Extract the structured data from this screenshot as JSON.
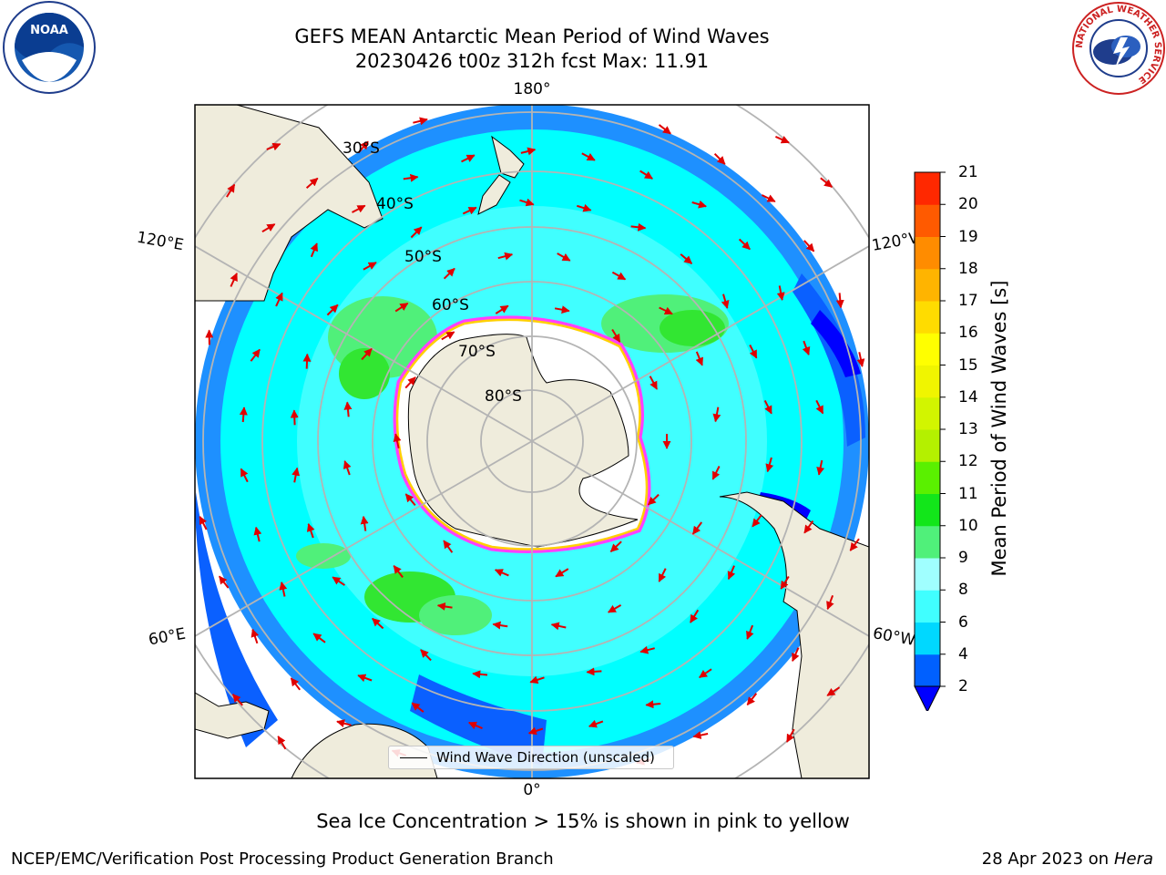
{
  "title_line1": "GEFS MEAN Antarctic Mean Period of Wind Waves",
  "title_line2": "20230426 t00z 312h fcst   Max: 11.91",
  "logos": {
    "left": "noaa-logo-icon",
    "right": "nws-logo-icon",
    "noaa_text": "NOAA",
    "nws_ring": "NATIONAL WEATHER SERVICE"
  },
  "map": {
    "projection": "south-polar-stereographic",
    "longitude_labels": {
      "top": "180°",
      "bottom": "0°",
      "upper_left": "120°E",
      "upper_right": "120°W",
      "lower_left": "60°E",
      "lower_right": "60°W"
    },
    "latitude_labels": [
      "30°S",
      "40°S",
      "50°S",
      "60°S",
      "70°S",
      "80°S"
    ],
    "colors": {
      "land": "#efecdc",
      "ocean_mid": "#00ffff",
      "ocean_low": "#1e90ff",
      "ocean_lowest": "#0000ff",
      "period_high": "#32e632",
      "sea_ice": "#ff40ff",
      "arrows": "#e00000",
      "grid": "#b4b4b4"
    }
  },
  "legend_label": "Wind Wave Direction (unscaled)",
  "colorbar": {
    "label": "Mean Period of Wind Waves [s]",
    "ticks": [
      "2",
      "4",
      "6",
      "8",
      "9",
      "10",
      "11",
      "12",
      "13",
      "14",
      "15",
      "16",
      "17",
      "18",
      "19",
      "20",
      "21"
    ],
    "colors": [
      "#0060ff",
      "#00d8ff",
      "#40ffff",
      "#a0ffff",
      "#50f07a",
      "#12e61a",
      "#5af000",
      "#b4f000",
      "#d2f500",
      "#f0f500",
      "#ffff00",
      "#ffdc00",
      "#ffb400",
      "#ff8c00",
      "#ff5a00",
      "#ff2800"
    ],
    "extend_color": "#0000ff"
  },
  "subcaption": "Sea Ice Concentration > 15% is shown in pink to yellow",
  "footer_left": "NCEP/EMC/Verification Post Processing Product Generation Branch",
  "footer_date": "28 Apr 2023 on ",
  "footer_machine": "Hera"
}
